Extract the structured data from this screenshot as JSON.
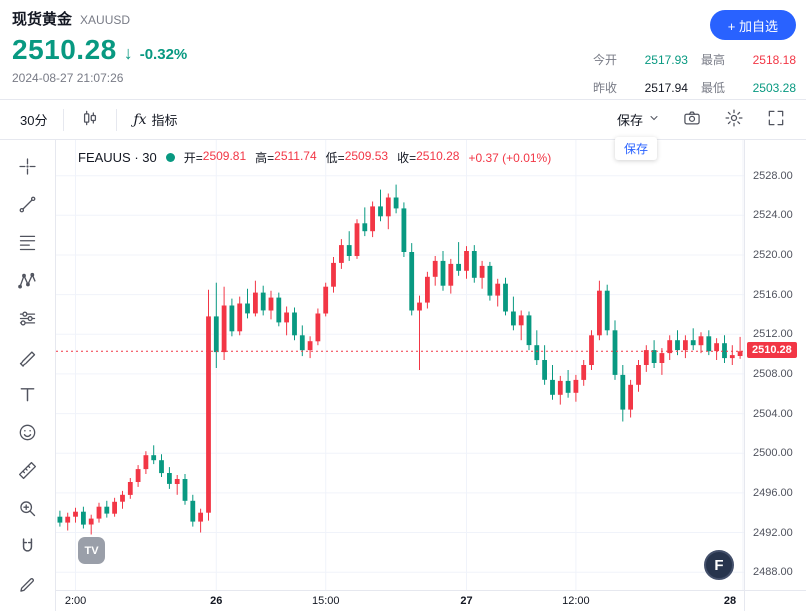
{
  "header": {
    "title": "现货黄金",
    "symbol": "XAUUSD",
    "price": "2510.28",
    "direction_arrow": "↓",
    "change_pct": "-0.32%",
    "timestamp": "2024-08-27 21:07:26",
    "add_watchlist_label": "+ 加自选",
    "stats": [
      {
        "label": "今开",
        "value": "2517.93",
        "color": "green"
      },
      {
        "label": "最高",
        "value": "2518.18",
        "color": "red"
      },
      {
        "label": "昨收",
        "value": "2517.94",
        "color": "dark"
      },
      {
        "label": "最低",
        "value": "2503.28",
        "color": "green"
      }
    ]
  },
  "toolbar": {
    "interval_label": "30分",
    "fx_label": "ƒx",
    "indicators_label": "指标",
    "save_label": "保存",
    "save_tooltip": "保存",
    "right_icons": [
      "camera-icon",
      "settings-gear-icon",
      "fullscreen-icon"
    ]
  },
  "sidebar": {
    "tools": [
      "crosshair-icon",
      "trend-line-icon",
      "fib-retracement-icon",
      "xabcd-pattern-icon",
      "forecast-sliders-icon",
      "brush-icon",
      "text-tool-icon",
      "emoji-icon",
      "ruler-icon",
      "zoom-in-icon",
      "magnet-icon",
      "pencil-edit-icon"
    ]
  },
  "chart": {
    "legend": {
      "series_name": "FEAUUS · 30",
      "open_label": "开=",
      "open_value": "2509.81",
      "high_label": "高=",
      "high_value": "2511.74",
      "low_label": "低=",
      "low_value": "2509.53",
      "close_label": "收=",
      "close_value": "2510.28",
      "change_text": "+0.37 (+0.01%)"
    },
    "price_axis_labels": [
      "2528.00",
      "2524.00",
      "2520.00",
      "2516.00",
      "2512.00",
      "2508.00",
      "2504.00",
      "2500.00",
      "2496.00",
      "2492.00",
      "2488.00"
    ],
    "last_price_label": "2510.28"
  },
  "logos": {
    "tradingview": "TV",
    "footer_badge": "F"
  },
  "colors": {
    "up": "#f23645",
    "down": "#089981",
    "accent_blue": "#2962ff",
    "grid": "#f0f3fa"
  },
  "chart_data": {
    "type": "candlestick",
    "title": "现货黄金 XAUUSD 30分钟K线",
    "symbol": "FEAUUS",
    "interval_minutes": 30,
    "convention": "red=up, green=down",
    "up_color": "#f23645",
    "down_color": "#089981",
    "last_price": 2510.28,
    "visible_price_range": [
      2486.2,
      2531.6
    ],
    "price_ticks": [
      2528,
      2524,
      2520,
      2516,
      2512,
      2508,
      2504,
      2500,
      2496,
      2492,
      2488
    ],
    "time_axis": [
      {
        "label": "2:00",
        "bar": 2,
        "bold": false
      },
      {
        "label": "26",
        "bar": 20,
        "bold": true
      },
      {
        "label": "15:00",
        "bar": 34,
        "bold": false
      },
      {
        "label": "27",
        "bar": 52,
        "bold": true
      },
      {
        "label": "12:00",
        "bar": 66,
        "bold": false
      },
      {
        "label": "28",
        "bar": 87.5,
        "bold": true
      }
    ],
    "candles": [
      [
        2493.6,
        2494.2,
        2492.6,
        2493.0
      ],
      [
        2493.0,
        2494.0,
        2492.2,
        2493.6
      ],
      [
        2493.6,
        2494.5,
        2493.0,
        2494.1
      ],
      [
        2494.1,
        2494.6,
        2492.4,
        2492.8
      ],
      [
        2492.8,
        2493.8,
        2491.8,
        2493.4
      ],
      [
        2493.4,
        2495.0,
        2493.0,
        2494.6
      ],
      [
        2494.6,
        2495.2,
        2493.5,
        2493.9
      ],
      [
        2493.9,
        2495.5,
        2493.6,
        2495.1
      ],
      [
        2495.1,
        2496.2,
        2494.4,
        2495.8
      ],
      [
        2495.8,
        2497.5,
        2495.4,
        2497.1
      ],
      [
        2497.1,
        2498.8,
        2496.6,
        2498.4
      ],
      [
        2498.4,
        2500.2,
        2497.9,
        2499.8
      ],
      [
        2499.8,
        2500.8,
        2498.9,
        2499.3
      ],
      [
        2499.3,
        2499.9,
        2497.6,
        2498.0
      ],
      [
        2498.0,
        2498.6,
        2496.4,
        2496.9
      ],
      [
        2496.9,
        2497.8,
        2495.8,
        2497.4
      ],
      [
        2497.4,
        2497.9,
        2494.8,
        2495.2
      ],
      [
        2495.2,
        2495.8,
        2492.6,
        2493.1
      ],
      [
        2493.1,
        2494.4,
        2492.0,
        2494.0
      ],
      [
        2494.0,
        2516.5,
        2493.2,
        2513.8
      ],
      [
        2513.8,
        2517.2,
        2508.6,
        2510.2
      ],
      [
        2510.2,
        2516.8,
        2509.4,
        2514.9
      ],
      [
        2514.9,
        2515.6,
        2511.8,
        2512.3
      ],
      [
        2512.3,
        2515.8,
        2511.9,
        2515.1
      ],
      [
        2515.1,
        2516.6,
        2513.6,
        2514.1
      ],
      [
        2514.1,
        2517.4,
        2513.8,
        2516.2
      ],
      [
        2516.2,
        2516.9,
        2513.9,
        2514.4
      ],
      [
        2514.4,
        2516.4,
        2513.5,
        2515.7
      ],
      [
        2515.7,
        2516.2,
        2512.8,
        2513.2
      ],
      [
        2513.2,
        2514.8,
        2511.9,
        2514.2
      ],
      [
        2514.2,
        2514.7,
        2511.4,
        2511.9
      ],
      [
        2511.9,
        2512.9,
        2509.8,
        2510.4
      ],
      [
        2510.4,
        2511.8,
        2509.6,
        2511.3
      ],
      [
        2511.3,
        2514.6,
        2510.9,
        2514.1
      ],
      [
        2514.1,
        2517.2,
        2513.8,
        2516.8
      ],
      [
        2516.8,
        2519.8,
        2516.2,
        2519.2
      ],
      [
        2519.2,
        2521.6,
        2518.6,
        2521.0
      ],
      [
        2521.0,
        2522.4,
        2519.4,
        2519.9
      ],
      [
        2519.9,
        2523.6,
        2519.6,
        2523.2
      ],
      [
        2523.2,
        2524.8,
        2521.9,
        2522.4
      ],
      [
        2522.4,
        2525.4,
        2521.8,
        2524.9
      ],
      [
        2524.9,
        2526.6,
        2523.4,
        2523.9
      ],
      [
        2523.9,
        2526.2,
        2522.6,
        2525.8
      ],
      [
        2525.8,
        2527.1,
        2524.2,
        2524.7
      ],
      [
        2524.7,
        2525.3,
        2519.8,
        2520.3
      ],
      [
        2520.3,
        2521.2,
        2513.9,
        2514.4
      ],
      [
        2514.4,
        2515.9,
        2508.4,
        2515.2
      ],
      [
        2515.2,
        2518.3,
        2514.6,
        2517.8
      ],
      [
        2517.8,
        2519.9,
        2516.9,
        2519.4
      ],
      [
        2519.4,
        2520.4,
        2516.4,
        2516.9
      ],
      [
        2516.9,
        2519.6,
        2516.1,
        2519.1
      ],
      [
        2519.1,
        2521.3,
        2517.9,
        2518.4
      ],
      [
        2518.4,
        2520.9,
        2517.6,
        2520.4
      ],
      [
        2520.4,
        2521.0,
        2517.2,
        2517.7
      ],
      [
        2517.7,
        2519.4,
        2516.6,
        2518.9
      ],
      [
        2518.9,
        2519.3,
        2515.4,
        2515.9
      ],
      [
        2515.9,
        2517.6,
        2514.8,
        2517.1
      ],
      [
        2517.1,
        2517.7,
        2513.9,
        2514.3
      ],
      [
        2514.3,
        2515.8,
        2512.4,
        2512.9
      ],
      [
        2512.9,
        2514.4,
        2511.4,
        2513.9
      ],
      [
        2513.9,
        2514.3,
        2510.4,
        2510.9
      ],
      [
        2510.9,
        2512.4,
        2508.9,
        2509.4
      ],
      [
        2509.4,
        2510.9,
        2506.9,
        2507.4
      ],
      [
        2507.4,
        2508.9,
        2505.4,
        2505.9
      ],
      [
        2505.9,
        2507.8,
        2504.9,
        2507.3
      ],
      [
        2507.3,
        2508.4,
        2505.6,
        2506.1
      ],
      [
        2506.1,
        2507.9,
        2505.2,
        2507.4
      ],
      [
        2507.4,
        2509.4,
        2506.8,
        2508.9
      ],
      [
        2508.9,
        2512.4,
        2508.4,
        2511.9
      ],
      [
        2511.9,
        2517.4,
        2511.4,
        2516.4
      ],
      [
        2516.4,
        2517.0,
        2511.9,
        2512.4
      ],
      [
        2512.4,
        2513.4,
        2507.4,
        2507.9
      ],
      [
        2507.9,
        2508.9,
        2503.2,
        2504.4
      ],
      [
        2504.4,
        2507.4,
        2503.6,
        2506.9
      ],
      [
        2506.9,
        2509.4,
        2506.2,
        2508.9
      ],
      [
        2508.9,
        2510.9,
        2508.2,
        2510.4
      ],
      [
        2510.4,
        2511.4,
        2508.6,
        2509.1
      ],
      [
        2509.1,
        2510.6,
        2507.9,
        2510.1
      ],
      [
        2510.1,
        2511.9,
        2509.4,
        2511.4
      ],
      [
        2511.4,
        2512.4,
        2509.9,
        2510.4
      ],
      [
        2510.4,
        2511.9,
        2509.6,
        2511.4
      ],
      [
        2511.4,
        2512.6,
        2510.4,
        2510.9
      ],
      [
        2510.9,
        2512.2,
        2510.1,
        2511.8
      ],
      [
        2511.8,
        2512.4,
        2509.9,
        2510.3
      ],
      [
        2510.3,
        2511.6,
        2509.4,
        2511.1
      ],
      [
        2511.1,
        2511.9,
        2509.1,
        2509.6
      ],
      [
        2509.6,
        2510.9,
        2508.9,
        2509.9
      ],
      [
        2509.81,
        2511.74,
        2509.53,
        2510.28
      ]
    ]
  }
}
